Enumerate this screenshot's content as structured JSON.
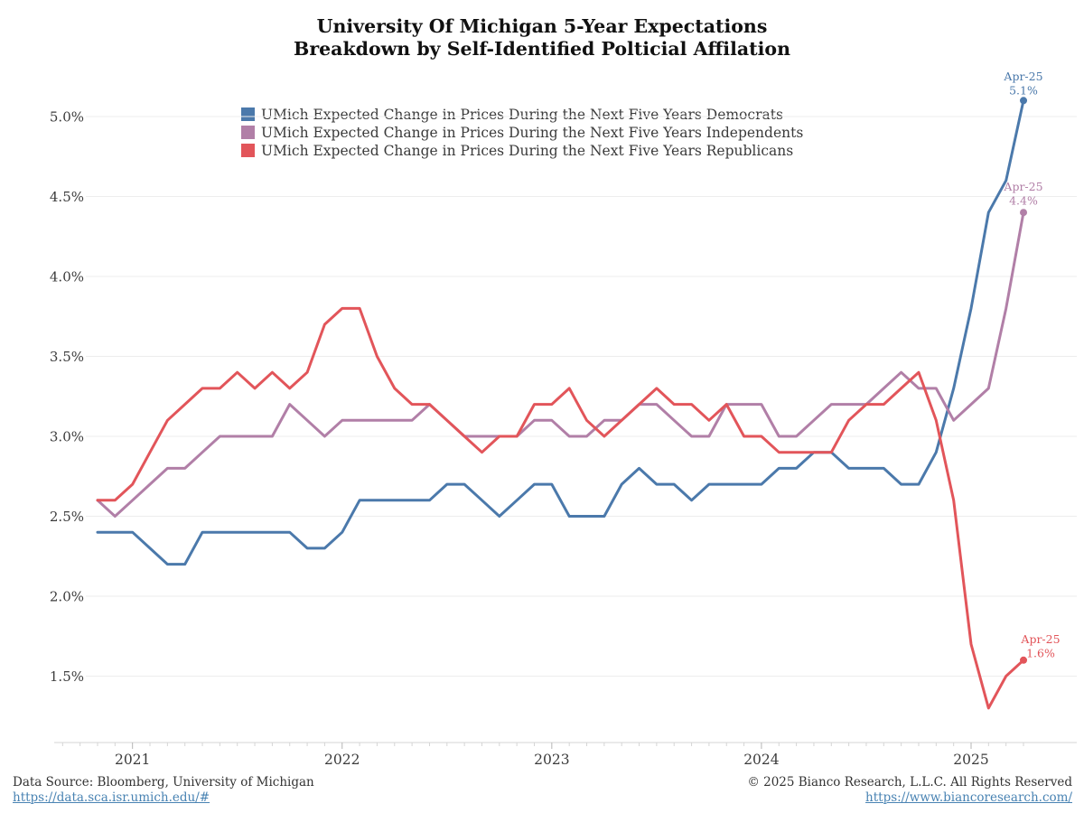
{
  "title": {
    "line1": "University Of Michigan 5-Year Expectations",
    "line2": "Breakdown by Self-Identified Polticial Affilation"
  },
  "legend": [
    {
      "label": "UMich Expected Change in Prices During the Next Five Years Democrats",
      "color": "#4b79ab"
    },
    {
      "label": "UMich Expected Change in Prices During the Next Five Years Independents",
      "color": "#b17fa7"
    },
    {
      "label": "UMich Expected Change in Prices During the Next Five Years Republicans",
      "color": "#e2555a"
    }
  ],
  "chart_data": {
    "type": "line",
    "x": [
      "Nov-20",
      "Dec-20",
      "Jan-21",
      "Feb-21",
      "Mar-21",
      "Apr-21",
      "May-21",
      "Jun-21",
      "Jul-21",
      "Aug-21",
      "Sep-21",
      "Oct-21",
      "Nov-21",
      "Dec-21",
      "Jan-22",
      "Feb-22",
      "Mar-22",
      "Apr-22",
      "May-22",
      "Jun-22",
      "Jul-22",
      "Aug-22",
      "Sep-22",
      "Oct-22",
      "Nov-22",
      "Dec-22",
      "Jan-23",
      "Feb-23",
      "Mar-23",
      "Apr-23",
      "May-23",
      "Jun-23",
      "Jul-23",
      "Aug-23",
      "Sep-23",
      "Oct-23",
      "Nov-23",
      "Dec-23",
      "Jan-24",
      "Feb-24",
      "Mar-24",
      "Apr-24",
      "May-24",
      "Jun-24",
      "Jul-24",
      "Aug-24",
      "Sep-24",
      "Oct-24",
      "Nov-24",
      "Dec-24",
      "Jan-25",
      "Feb-25",
      "Mar-25",
      "Apr-25"
    ],
    "series": [
      {
        "name": "Democrats",
        "color": "#4b79ab",
        "values": [
          2.4,
          2.4,
          2.4,
          2.3,
          2.2,
          2.2,
          2.4,
          2.4,
          2.4,
          2.4,
          2.4,
          2.4,
          2.3,
          2.3,
          2.4,
          2.6,
          2.6,
          2.6,
          2.6,
          2.6,
          2.7,
          2.7,
          2.6,
          2.5,
          2.6,
          2.7,
          2.7,
          2.5,
          2.5,
          2.5,
          2.7,
          2.8,
          2.7,
          2.7,
          2.6,
          2.7,
          2.7,
          2.7,
          2.7,
          2.8,
          2.8,
          2.9,
          2.9,
          2.8,
          2.8,
          2.8,
          2.7,
          2.7,
          2.9,
          3.3,
          3.8,
          4.4,
          4.6,
          5.1
        ]
      },
      {
        "name": "Independents",
        "color": "#b17fa7",
        "values": [
          2.6,
          2.5,
          2.6,
          2.7,
          2.8,
          2.8,
          2.9,
          3.0,
          3.0,
          3.0,
          3.0,
          3.2,
          3.1,
          3.0,
          3.1,
          3.1,
          3.1,
          3.1,
          3.1,
          3.2,
          3.1,
          3.0,
          3.0,
          3.0,
          3.0,
          3.1,
          3.1,
          3.0,
          3.0,
          3.1,
          3.1,
          3.2,
          3.2,
          3.1,
          3.0,
          3.0,
          3.2,
          3.2,
          3.2,
          3.0,
          3.0,
          3.1,
          3.2,
          3.2,
          3.2,
          3.3,
          3.4,
          3.3,
          3.3,
          3.1,
          3.2,
          3.3,
          3.8,
          4.4
        ]
      },
      {
        "name": "Republicans",
        "color": "#e2555a",
        "values": [
          2.6,
          2.6,
          2.7,
          2.9,
          3.1,
          3.2,
          3.3,
          3.3,
          3.4,
          3.3,
          3.4,
          3.3,
          3.4,
          3.7,
          3.8,
          3.8,
          3.5,
          3.3,
          3.2,
          3.2,
          3.1,
          3.0,
          2.9,
          3.0,
          3.0,
          3.2,
          3.2,
          3.3,
          3.1,
          3.0,
          3.1,
          3.2,
          3.3,
          3.2,
          3.2,
          3.1,
          3.2,
          3.0,
          3.0,
          2.9,
          2.9,
          2.9,
          2.9,
          3.1,
          3.2,
          3.2,
          3.3,
          3.4,
          3.1,
          2.6,
          1.7,
          1.3,
          1.5,
          1.6
        ]
      }
    ],
    "annotations": [
      {
        "series": "Democrats",
        "line1": "Apr-25",
        "line2": "5.1%",
        "color": "#4b79ab"
      },
      {
        "series": "Independents",
        "line1": "Apr-25",
        "line2": "4.4%",
        "color": "#b17fa7"
      },
      {
        "series": "Republicans",
        "line1": "Apr-25",
        "line2": "1.6%",
        "color": "#e2555a"
      }
    ],
    "y_axis": {
      "labels": [
        "5.0%",
        "4.5%",
        "4.0%",
        "3.5%",
        "3.0%",
        "2.5%",
        "2.0%",
        "1.5%"
      ],
      "values": [
        5.0,
        4.5,
        4.0,
        3.5,
        3.0,
        2.5,
        2.0,
        1.5
      ],
      "ylim": [
        1.1,
        5.3
      ],
      "grid": "horizontal-only"
    },
    "x_axis": {
      "years": [
        "2021",
        "2022",
        "2023",
        "2024",
        "2025"
      ],
      "jan_indices": [
        2,
        14,
        26,
        38,
        50
      ]
    },
    "legend_position": "top-left-inside"
  },
  "footer": {
    "source_text": "Data Source: Bloomberg, University of Michigan",
    "source_url": "https://data.sca.isr.umich.edu/#",
    "copyright_text": "© 2025 Bianco Research, L.L.C. All Rights Reserved",
    "copyright_url": "https://www.biancoresearch.com/"
  }
}
